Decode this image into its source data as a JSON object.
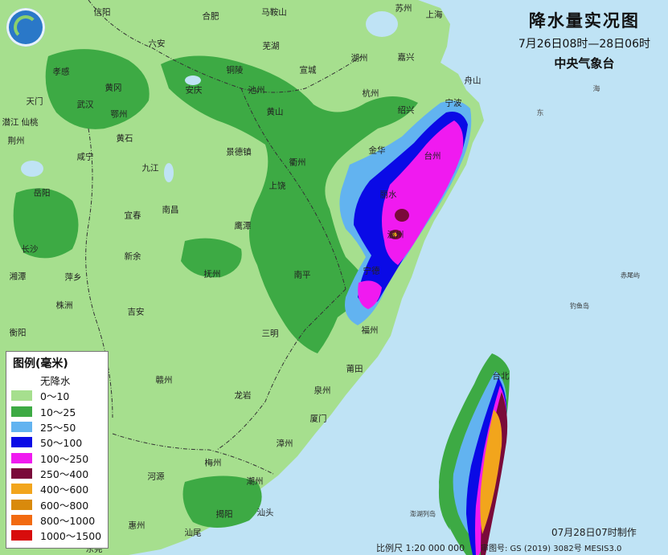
{
  "title": {
    "main": "降水量实况图",
    "period": "7月26日08时—28日06时",
    "agency": "中央气象台"
  },
  "legend": {
    "title": "图例(毫米)",
    "items": [
      {
        "label": "无降水",
        "color": ""
      },
      {
        "label": "0～10",
        "color": "#a6df8e"
      },
      {
        "label": "10～25",
        "color": "#3daa44"
      },
      {
        "label": "25～50",
        "color": "#62b3f0"
      },
      {
        "label": "50～100",
        "color": "#0a0ae6"
      },
      {
        "label": "100～250",
        "color": "#f01af0"
      },
      {
        "label": "250～400",
        "color": "#7a0a3a"
      },
      {
        "label": "400～600",
        "color": "#f2a51c"
      },
      {
        "label": "600～800",
        "color": "#d98a0c"
      },
      {
        "label": "800～1000",
        "color": "#f26a10"
      },
      {
        "label": "1000～1500",
        "color": "#d80c0c"
      }
    ]
  },
  "footer": {
    "made": "07月28日07时制作",
    "scale": "比例尺 1:20 000 000",
    "map_no": "审图号: GS (2019) 3082号 MESIS3.0"
  },
  "colors": {
    "sea": "#bfe3f5",
    "land": "#a6df8e"
  },
  "cities": {
    "xinyang": "信阳",
    "hefei": "合肥",
    "maanshan": "马鞍山",
    "suzhou": "苏州",
    "shanghai": "上海",
    "luan": "六安",
    "wuhu": "芜湖",
    "huzhou": "湖州",
    "jiaxing": "嘉兴",
    "xiaogan": "孝感",
    "huanggang": "黄冈",
    "anqing": "安庆",
    "tongling": "铜陵",
    "xuancheng": "宣城",
    "chizhou": "池州",
    "hangzhou": "杭州",
    "zhoushan": "舟山",
    "tianmen": "天门",
    "wuhan": "武汉",
    "ezhou": "鄂州",
    "huangshan": "黄山",
    "shaoxing": "绍兴",
    "ningbo": "宁波",
    "qianjiang": "潜江",
    "xiantao": "仙桃",
    "huangshi": "黄石",
    "jingdezhen": "景德镇",
    "jinhua": "金华",
    "jingzhou": "荆州",
    "xianning": "咸宁",
    "quzhou": "衢州",
    "taizhou": "台州",
    "jiujiang": "九江",
    "shangrao": "上饶",
    "lishui": "丽水",
    "yueyang": "岳阳",
    "yichun": "宜春",
    "nanchang": "南昌",
    "yingtan": "鹰潭",
    "wenzhou": "温州",
    "changsha": "长沙",
    "xinyu": "新余",
    "fuzhou_jx": "抚州",
    "nanping": "南平",
    "ningde": "宁德",
    "xiangtan": "湘潭",
    "pingxiang": "萍乡",
    "zhuzhou": "株洲",
    "jian": "吉安",
    "sanming": "三明",
    "fuzhou": "福州",
    "hengyang": "衡阳",
    "ganzhou": "赣州",
    "putian": "莆田",
    "taibei": "台北",
    "longyan": "龙岩",
    "quanzhou": "泉州",
    "xiamen": "厦门",
    "zhangzhou": "漳州",
    "meizhou": "梅州",
    "heyuan": "河源",
    "chaozhou": "潮州",
    "jieyang": "揭阳",
    "shantou": "汕头",
    "huizhou": "惠州",
    "shanwei": "汕尾",
    "dongguan": "东莞"
  },
  "places": {
    "sea_label": "海",
    "dong": "东",
    "chiweiyu": "赤尾屿",
    "diaoyudao": "钓鱼岛",
    "penghu": "澎湖列岛"
  }
}
